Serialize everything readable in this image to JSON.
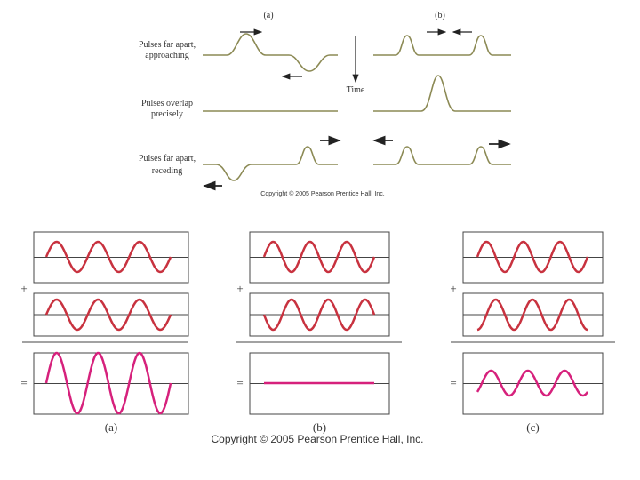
{
  "top_figure": {
    "column_labels": [
      "(a)",
      "(b)"
    ],
    "row_labels": [
      [
        "Pulses far apart,",
        "approaching"
      ],
      [
        "Pulses overlap",
        "precisely"
      ],
      [
        "Pulses far apart,",
        "receding"
      ]
    ],
    "time_label": "Time",
    "copyright": "Copyright © 2005 Pearson Prentice Hall, Inc."
  },
  "bottom_figure": {
    "panels": [
      {
        "plus": "+",
        "equals": "=",
        "label": "(a)"
      },
      {
        "plus": "+",
        "equals": "=",
        "label": "(b)"
      },
      {
        "plus": "+",
        "equals": "=",
        "label": "(c)"
      }
    ],
    "copyright": "Copyright © 2005 Pearson Prentice Hall, Inc."
  }
}
